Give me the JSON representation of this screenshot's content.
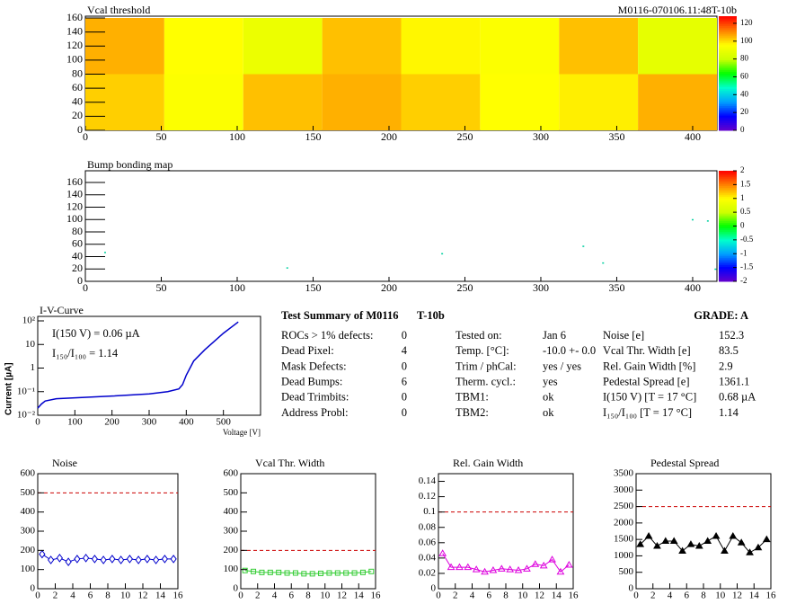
{
  "chart_data": [
    {
      "type": "heatmap",
      "title": "Vcal threshold",
      "subtitle": "M0116-070106.11:48T-10b",
      "x": [
        0,
        52,
        104,
        156,
        208,
        260,
        312,
        364,
        416
      ],
      "y": [
        0,
        80,
        160
      ],
      "values": [
        [
          102,
          95,
          104,
          106,
          102,
          96,
          98,
          106
        ],
        [
          106,
          96,
          90,
          104,
          97,
          95,
          104,
          88
        ]
      ],
      "xlim": [
        0,
        416
      ],
      "ylim": [
        0,
        160
      ],
      "xticks": [
        0,
        50,
        100,
        150,
        200,
        250,
        300,
        350,
        400
      ],
      "yticks": [
        0,
        20,
        40,
        60,
        80,
        100,
        120,
        140,
        160
      ],
      "zlim": [
        0,
        128
      ],
      "zticks": [
        0,
        20,
        40,
        60,
        80,
        100,
        120
      ],
      "colorscale": [
        "#6600cc",
        "#0000ff",
        "#00a0ff",
        "#00ffcc",
        "#00ff00",
        "#ccff00",
        "#ffff00",
        "#ff8000",
        "#ff0000"
      ]
    },
    {
      "type": "scatter",
      "title": "Bump bonding map",
      "x": [
        13,
        133,
        235,
        328,
        341,
        400,
        410,
        415
      ],
      "y": [
        47,
        22,
        45,
        57,
        30,
        100,
        98,
        20
      ],
      "color": "#00d0a0",
      "xlim": [
        0,
        416
      ],
      "ylim": [
        0,
        160
      ],
      "xticks": [
        0,
        50,
        100,
        150,
        200,
        250,
        300,
        350,
        400
      ],
      "yticks": [
        0,
        20,
        40,
        60,
        80,
        100,
        120,
        140,
        160
      ],
      "zlim": [
        -2,
        2
      ],
      "zticks": [
        -2,
        -1.5,
        -1,
        -0.5,
        0,
        0.5,
        1,
        1.5,
        2
      ],
      "colorscale": [
        "#6600cc",
        "#0000ff",
        "#00a0ff",
        "#00ffcc",
        "#00ff00",
        "#ccff00",
        "#ffff00",
        "#ff8000",
        "#ff0000"
      ]
    },
    {
      "type": "line",
      "title": "I-V-Curve",
      "xlabel": "Voltage [V]",
      "ylabel": "Current [µA]",
      "log_y": true,
      "annotations": [
        "I(150 V) = 0.06 µA",
        "I₁₅₀/I₁₀₀ =  1.14"
      ],
      "x": [
        0,
        10,
        20,
        50,
        100,
        200,
        300,
        350,
        380,
        390,
        400,
        420,
        450,
        500,
        540
      ],
      "series": [
        {
          "color": "#0000cc",
          "values": [
            0.02,
            0.03,
            0.04,
            0.05,
            0.055,
            0.065,
            0.08,
            0.1,
            0.13,
            0.2,
            0.5,
            2,
            6,
            30,
            90
          ]
        }
      ],
      "xlim": [
        0,
        600
      ],
      "ylim": [
        0.01,
        100
      ],
      "xticks": [
        0,
        100,
        200,
        300,
        400,
        500
      ],
      "yticks": [
        {
          "value": 0.01,
          "label": "10⁻²"
        },
        {
          "value": 0.1,
          "label": "10⁻¹"
        },
        1,
        10,
        {
          "value": 100,
          "label": "10²"
        }
      ]
    },
    {
      "type": "line",
      "title": "Noise",
      "marker": "diamond",
      "threshold": 500,
      "x": [
        0.5,
        1.5,
        2.5,
        3.5,
        4.5,
        5.5,
        6.5,
        7.5,
        8.5,
        9.5,
        10.5,
        11.5,
        12.5,
        13.5,
        14.5,
        15.5
      ],
      "series": [
        {
          "color": "#0000cc",
          "values": [
            180,
            150,
            160,
            140,
            155,
            160,
            155,
            150,
            155,
            150,
            155,
            150,
            155,
            150,
            155,
            155
          ],
          "errors": [
            15,
            15,
            15,
            15,
            15,
            15,
            15,
            15,
            15,
            15,
            15,
            15,
            15,
            15,
            15,
            15
          ]
        }
      ],
      "xlim": [
        0,
        16
      ],
      "ylim": [
        0,
        600
      ],
      "xticks": [
        0,
        2,
        4,
        6,
        8,
        10,
        12,
        14,
        16
      ],
      "yticks": [
        0,
        100,
        200,
        300,
        400,
        500,
        600
      ]
    },
    {
      "type": "line",
      "title": "Vcal Thr. Width",
      "marker": "square",
      "threshold": 200,
      "x": [
        0.5,
        1.5,
        2.5,
        3.5,
        4.5,
        5.5,
        6.5,
        7.5,
        8.5,
        9.5,
        10.5,
        11.5,
        12.5,
        13.5,
        14.5,
        15.5
      ],
      "series": [
        {
          "color": "#33cc33",
          "values": [
            95,
            90,
            85,
            85,
            85,
            82,
            82,
            78,
            78,
            80,
            82,
            82,
            82,
            82,
            85,
            90
          ]
        }
      ],
      "xlim": [
        0,
        16
      ],
      "ylim": [
        0,
        600
      ],
      "xticks": [
        0,
        2,
        4,
        6,
        8,
        10,
        12,
        14,
        16
      ],
      "yticks": [
        0,
        100,
        200,
        300,
        400,
        500,
        600
      ]
    },
    {
      "type": "line",
      "title": "Rel. Gain Width",
      "marker": "triangle",
      "threshold": 0.1,
      "x": [
        0.5,
        1.5,
        2.5,
        3.5,
        4.5,
        5.5,
        6.5,
        7.5,
        8.5,
        9.5,
        10.5,
        11.5,
        12.5,
        13.5,
        14.5,
        15.5
      ],
      "series": [
        {
          "color": "#dd00dd",
          "values": [
            0.046,
            0.028,
            0.028,
            0.028,
            0.025,
            0.022,
            0.024,
            0.026,
            0.025,
            0.024,
            0.026,
            0.032,
            0.03,
            0.038,
            0.022,
            0.031
          ]
        }
      ],
      "xlim": [
        0,
        16
      ],
      "ylim": [
        0,
        0.15
      ],
      "xticks": [
        0,
        2,
        4,
        6,
        8,
        10,
        12,
        14,
        16
      ],
      "yticks": [
        0,
        0.02,
        0.04,
        0.06,
        0.08,
        0.1,
        0.12,
        0.14
      ]
    },
    {
      "type": "line",
      "title": "Pedestal Spread",
      "marker": "filled-triangle",
      "threshold": 2500,
      "x": [
        0.5,
        1.5,
        2.5,
        3.5,
        4.5,
        5.5,
        6.5,
        7.5,
        8.5,
        9.5,
        10.5,
        11.5,
        12.5,
        13.5,
        14.5,
        15.5
      ],
      "series": [
        {
          "color": "#000000",
          "values": [
            1350,
            1600,
            1300,
            1450,
            1450,
            1150,
            1350,
            1300,
            1450,
            1600,
            1150,
            1600,
            1400,
            1100,
            1250,
            1500
          ]
        }
      ],
      "xlim": [
        0,
        16
      ],
      "ylim": [
        0,
        3500
      ],
      "xticks": [
        0,
        2,
        4,
        6,
        8,
        10,
        12,
        14,
        16
      ],
      "yticks": [
        0,
        500,
        1000,
        1500,
        2000,
        2500,
        3000,
        3500
      ]
    }
  ],
  "summary": {
    "title": "Test Summary of M0116",
    "test": "T-10b",
    "grade": "GRADE:  A",
    "left": [
      [
        "ROCs > 1% defects:",
        0
      ],
      [
        "Dead Pixel:",
        4
      ],
      [
        "Mask Defects:",
        0
      ],
      [
        "Dead Bumps:",
        6
      ],
      [
        "Dead Trimbits:",
        0
      ],
      [
        "Address Probl:",
        0
      ]
    ],
    "middle": [
      [
        "Tested on:",
        "Jan 6"
      ],
      [
        "Temp. [°C]:",
        "-10.0 +- 0.0"
      ],
      [
        "Trim / phCal:",
        "yes / yes"
      ],
      [
        "Therm. cycl.:",
        "yes"
      ],
      [
        "TBM1:",
        "ok"
      ],
      [
        "TBM2:",
        "ok"
      ]
    ],
    "right": [
      [
        "Noise [e]",
        "152.3"
      ],
      [
        "Vcal Thr. Width [e]",
        "83.5"
      ],
      [
        "Rel. Gain Width [%]",
        "2.9"
      ],
      [
        "Pedestal Spread [e]",
        "1361.1"
      ],
      [
        "I(150 V)  [T = 17 °C]",
        "0.68 µA"
      ],
      [
        "I₁₅₀/I₁₀₀  [T = 17 °C]",
        "1.14"
      ]
    ]
  }
}
